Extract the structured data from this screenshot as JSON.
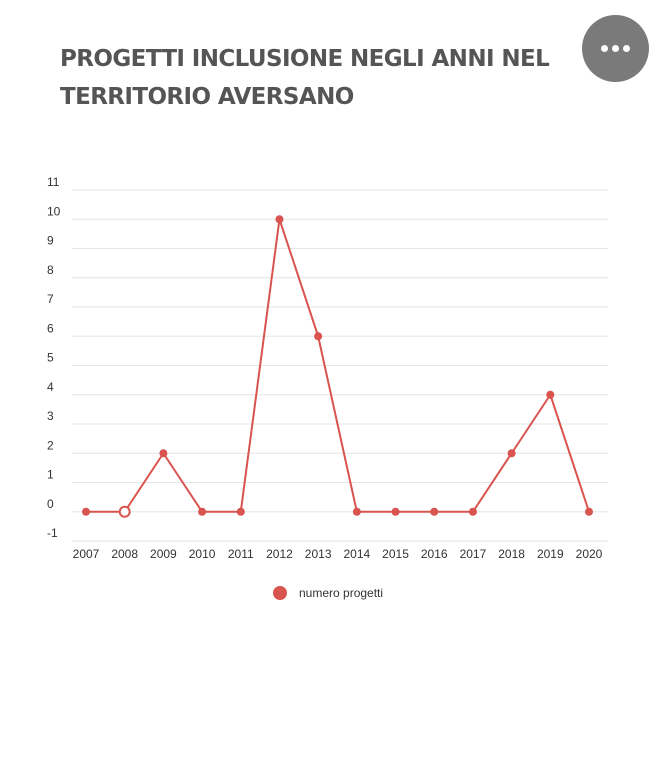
{
  "header": {
    "title": "PROGETTI INCLUSIONE NEGLI ANNI NEL TERRITORIO AVERSANO",
    "menu_icon": "more-horizontal-icon"
  },
  "colors": {
    "series": "#d9534f",
    "grid": "#e6e6e6",
    "title": "#555555",
    "menu_button": "#7a7a7a"
  },
  "chart_data": {
    "type": "line",
    "title": "PROGETTI INCLUSIONE NEGLI ANNI NEL TERRITORIO AVERSANO",
    "xlabel": "",
    "ylabel": "",
    "categories": [
      "2007",
      "2008",
      "2009",
      "2010",
      "2011",
      "2012",
      "2013",
      "2014",
      "2015",
      "2016",
      "2017",
      "2018",
      "2019",
      "2020"
    ],
    "series": [
      {
        "name": "numero progetti",
        "values": [
          0,
          0,
          2,
          0,
          0,
          10,
          6,
          0,
          0,
          0,
          0,
          2,
          4,
          0
        ],
        "highlighted_index": 1
      }
    ],
    "yticks": [
      "11",
      "10",
      "9",
      "8",
      "7",
      "6",
      "5",
      "4",
      "3",
      "2",
      "1",
      "0",
      "-1"
    ],
    "ylim": [
      -1,
      11
    ],
    "grid": true,
    "legend_position": "bottom-center"
  }
}
